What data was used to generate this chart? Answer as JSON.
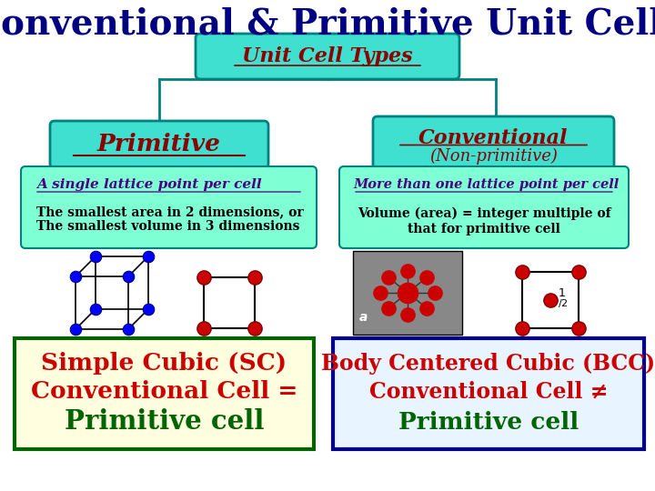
{
  "title": "Conventional & Primitive Unit Cells",
  "title_color": "#000080",
  "title_fontsize": 28,
  "bg_color": "#ffffff",
  "top_box_text": "Unit Cell Types",
  "top_box_color": "#40E0D0",
  "top_box_text_color": "#8B0000",
  "left_header": "Primitive",
  "left_header_color": "#40E0D0",
  "left_header_text_color": "#8B0000",
  "right_header_line1": "Conventional",
  "right_header_line2": "(Non-primitive)",
  "right_header_color": "#40E0D0",
  "right_header_text_color": "#8B0000",
  "left_desc_title": "A single lattice point per cell",
  "left_desc_body": "The smallest area in 2 dimensions, or\nThe smallest volume in 3 dimensions",
  "left_desc_color": "#7FFFD4",
  "right_desc_title": "More than one lattice point per cell",
  "right_desc_body": "Volume (area) = integer multiple of\nthat for primitive cell",
  "right_desc_color": "#7FFFD4",
  "bottom_left_line1": "Simple Cubic (SC)",
  "bottom_left_line2": "Conventional Cell =",
  "bottom_left_line3": "Primitive cell",
  "bottom_left_bg": "#FFFFE0",
  "bottom_left_border": "#006400",
  "bottom_right_line1": "Body Centered Cubic (BCC)",
  "bottom_right_line2": "Conventional Cell ≠",
  "bottom_right_line3": "Primitive cell",
  "bottom_right_bg": "#E8F4FF",
  "bottom_right_border": "#00008B",
  "teal_line": "#008080",
  "desc_title_color": "#4B0082",
  "bl_colors": [
    "#CC0000",
    "#CC0000",
    "#006400"
  ],
  "br_colors": [
    "#CC0000",
    "#CC0000",
    "#006400"
  ]
}
